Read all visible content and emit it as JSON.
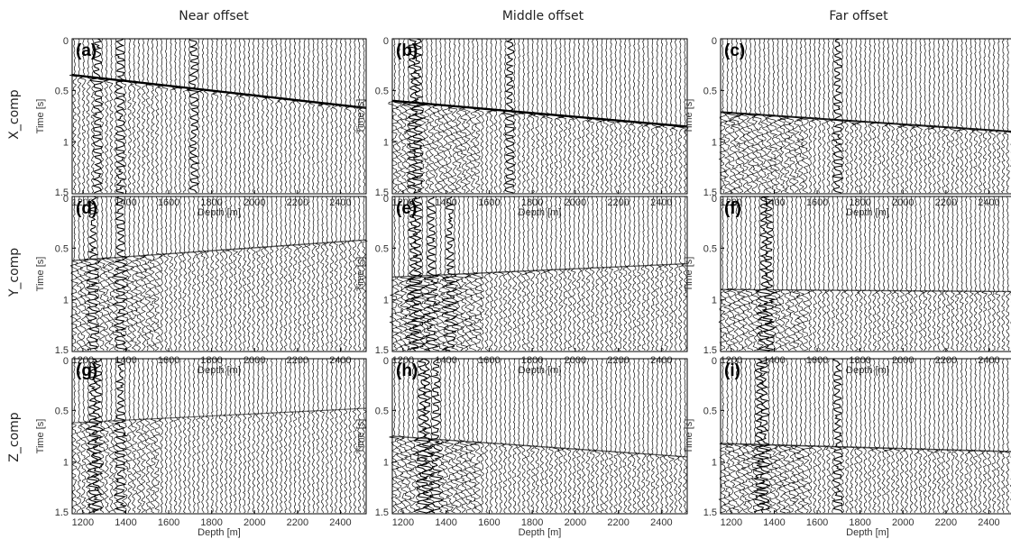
{
  "column_titles": [
    "Near offset",
    "Middle offset",
    "Far offset"
  ],
  "row_titles": [
    "X_comp",
    "Y_comp",
    "Z_comp"
  ],
  "chart_data": {
    "type": "seismic-wiggle-grid",
    "xlabel": "Depth [m]",
    "ylabel": "Time [s]",
    "xlim": [
      1150,
      2520
    ],
    "ylim": [
      0,
      1.5
    ],
    "y_inverted": true,
    "xticks": [
      1200,
      1400,
      1600,
      1800,
      2000,
      2200,
      2400
    ],
    "yticks": [
      0,
      0.5,
      1,
      1.5
    ],
    "ytick_labels": [
      "0",
      "0.5",
      "1",
      "1.5"
    ],
    "trace_count": 64,
    "panels": [
      {
        "label": "(a)",
        "row": 0,
        "col": 0,
        "first_arrival_s": [
          0.35,
          0.67
        ],
        "strength": 1.0,
        "noise": 0.3,
        "strong_depths": [
          1270,
          1380,
          1710
        ]
      },
      {
        "label": "(b)",
        "row": 0,
        "col": 1,
        "first_arrival_s": [
          0.6,
          0.85
        ],
        "strength": 1.0,
        "noise": 0.7,
        "strong_depths": [
          1260,
          1700
        ]
      },
      {
        "label": "(c)",
        "row": 0,
        "col": 2,
        "first_arrival_s": [
          0.71,
          0.9
        ],
        "strength": 0.8,
        "noise": 0.8,
        "strong_depths": [
          1700
        ]
      },
      {
        "label": "(d)",
        "row": 1,
        "col": 0,
        "first_arrival_s": [
          0.62,
          0.42
        ],
        "strength": 0.4,
        "noise": 0.8,
        "strong_depths": [
          1250,
          1380
        ]
      },
      {
        "label": "(e)",
        "row": 1,
        "col": 1,
        "first_arrival_s": [
          0.78,
          0.65
        ],
        "strength": 0.4,
        "noise": 1.0,
        "strong_depths": [
          1260,
          1330,
          1420
        ]
      },
      {
        "label": "(f)",
        "row": 1,
        "col": 2,
        "first_arrival_s": [
          0.9,
          0.92
        ],
        "strength": 0.4,
        "noise": 0.8,
        "strong_depths": [
          1360,
          1380
        ]
      },
      {
        "label": "(g)",
        "row": 2,
        "col": 0,
        "first_arrival_s": [
          0.62,
          0.48
        ],
        "strength": 0.3,
        "noise": 0.6,
        "strong_depths": [
          1260,
          1380
        ]
      },
      {
        "label": "(h)",
        "row": 2,
        "col": 1,
        "first_arrival_s": [
          0.75,
          0.95
        ],
        "strength": 0.4,
        "noise": 0.9,
        "strong_depths": [
          1300,
          1360
        ]
      },
      {
        "label": "(i)",
        "row": 2,
        "col": 2,
        "first_arrival_s": [
          0.82,
          0.9
        ],
        "strength": 0.5,
        "noise": 0.9,
        "strong_depths": [
          1340,
          1700
        ]
      }
    ]
  }
}
